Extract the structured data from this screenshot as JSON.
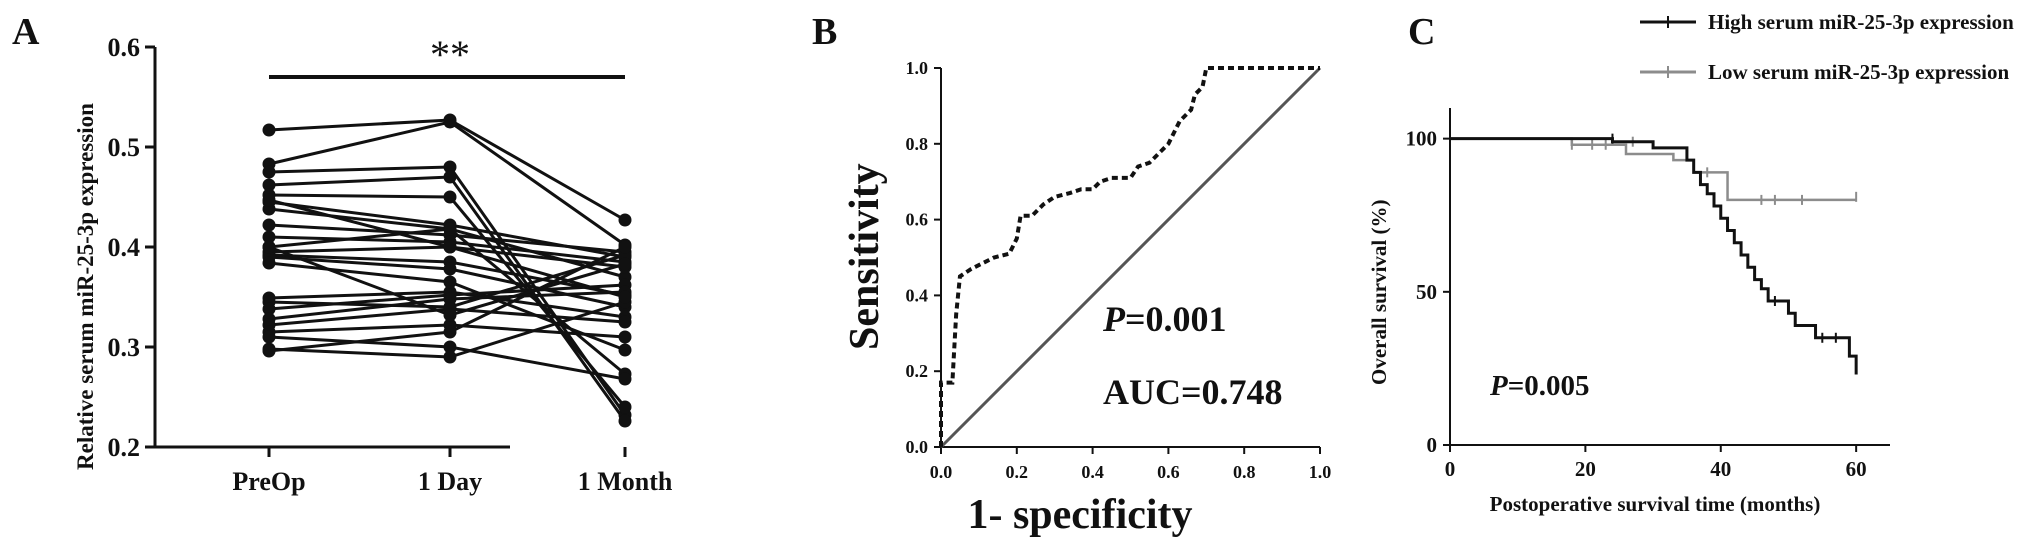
{
  "chart_data": [
    {
      "panel": "A",
      "type": "line",
      "ylabel": "Relative serum miR-25-3p expression",
      "categories": [
        "PreOp",
        "1 Day",
        "1 Month"
      ],
      "ylim": [
        0.2,
        0.6
      ],
      "yticks": [
        "0.2",
        "0.3",
        "0.4",
        "0.5",
        "0.6"
      ],
      "significance": "**",
      "series": [
        {
          "values": [
            0.517,
            0.527,
            0.427
          ]
        },
        {
          "values": [
            0.483,
            0.525,
            0.402
          ]
        },
        {
          "values": [
            0.475,
            0.48,
            0.232
          ]
        },
        {
          "values": [
            0.462,
            0.47,
            0.226
          ]
        },
        {
          "values": [
            0.452,
            0.45,
            0.24
          ]
        },
        {
          "values": [
            0.445,
            0.422,
            0.39
          ]
        },
        {
          "values": [
            0.438,
            0.418,
            0.273
          ]
        },
        {
          "values": [
            0.422,
            0.412,
            0.395
          ]
        },
        {
          "values": [
            0.41,
            0.405,
            0.385
          ]
        },
        {
          "values": [
            0.4,
            0.418,
            0.37
          ]
        },
        {
          "values": [
            0.395,
            0.4,
            0.38
          ]
        },
        {
          "values": [
            0.392,
            0.385,
            0.352
          ]
        },
        {
          "values": [
            0.39,
            0.378,
            0.34
          ]
        },
        {
          "values": [
            0.384,
            0.365,
            0.297
          ]
        },
        {
          "values": [
            0.349,
            0.355,
            0.33
          ]
        },
        {
          "values": [
            0.345,
            0.34,
            0.392
          ]
        },
        {
          "values": [
            0.338,
            0.352,
            0.362
          ]
        },
        {
          "values": [
            0.328,
            0.348,
            0.355
          ]
        },
        {
          "values": [
            0.322,
            0.338,
            0.325
          ]
        },
        {
          "values": [
            0.315,
            0.322,
            0.31
          ]
        },
        {
          "values": [
            0.31,
            0.3,
            0.268
          ]
        },
        {
          "values": [
            0.298,
            0.29,
            0.345
          ]
        },
        {
          "values": [
            0.296,
            0.315,
            0.4
          ]
        },
        {
          "values": [
            0.4,
            0.332,
            0.383
          ]
        },
        {
          "values": [
            0.447,
            0.4,
            0.35
          ]
        }
      ]
    },
    {
      "panel": "B",
      "type": "line",
      "xlabel": "1- specificity",
      "ylabel": "Sensitivity",
      "xlim": [
        0,
        1
      ],
      "ylim": [
        0,
        1
      ],
      "xticks": [
        "0.0",
        "0.2",
        "0.4",
        "0.6",
        "0.8",
        "1.0"
      ],
      "yticks": [
        "0.0",
        "0.2",
        "0.4",
        "0.6",
        "0.8",
        "1.0"
      ],
      "annotations": {
        "p_prefix": "P",
        "p_value": "=0.001",
        "auc": "AUC=0.748"
      },
      "roc": [
        [
          0,
          0
        ],
        [
          0,
          0.17
        ],
        [
          0.03,
          0.17
        ],
        [
          0.04,
          0.35
        ],
        [
          0.05,
          0.45
        ],
        [
          0.08,
          0.47
        ],
        [
          0.1,
          0.48
        ],
        [
          0.14,
          0.5
        ],
        [
          0.18,
          0.51
        ],
        [
          0.2,
          0.55
        ],
        [
          0.21,
          0.61
        ],
        [
          0.24,
          0.61
        ],
        [
          0.27,
          0.64
        ],
        [
          0.3,
          0.66
        ],
        [
          0.34,
          0.67
        ],
        [
          0.37,
          0.68
        ],
        [
          0.4,
          0.68
        ],
        [
          0.42,
          0.7
        ],
        [
          0.45,
          0.71
        ],
        [
          0.5,
          0.71
        ],
        [
          0.52,
          0.74
        ],
        [
          0.55,
          0.75
        ],
        [
          0.58,
          0.78
        ],
        [
          0.6,
          0.8
        ],
        [
          0.62,
          0.84
        ],
        [
          0.63,
          0.86
        ],
        [
          0.66,
          0.89
        ],
        [
          0.67,
          0.93
        ],
        [
          0.69,
          0.95
        ],
        [
          0.7,
          1.0
        ],
        [
          1.0,
          1.0
        ]
      ],
      "diagonal": [
        [
          0,
          0
        ],
        [
          1,
          1
        ]
      ]
    },
    {
      "panel": "C",
      "type": "line",
      "xlabel": "Postoperative survival time (months)",
      "ylabel": "Overall survival (%)",
      "xlim": [
        0,
        65
      ],
      "ylim": [
        0,
        110
      ],
      "xticks": [
        "0",
        "20",
        "40",
        "60"
      ],
      "yticks": [
        "0",
        "50",
        "100"
      ],
      "annotations": {
        "p_prefix": "P",
        "p_value": "=0.005"
      },
      "legend_position": "top-right",
      "colors": {
        "high": "#111111",
        "low": "#8c8c8c"
      },
      "series": [
        {
          "name": "High serum miR-25-3p expression",
          "steps": [
            [
              0,
              100
            ],
            [
              24,
              100
            ],
            [
              24,
              99
            ],
            [
              30,
              99
            ],
            [
              30,
              97
            ],
            [
              35,
              97
            ],
            [
              35,
              93
            ],
            [
              36,
              93
            ],
            [
              36,
              89
            ],
            [
              37,
              89
            ],
            [
              37,
              85
            ],
            [
              38,
              85
            ],
            [
              38,
              82
            ],
            [
              39,
              82
            ],
            [
              39,
              78
            ],
            [
              40,
              78
            ],
            [
              40,
              74
            ],
            [
              41,
              74
            ],
            [
              41,
              70
            ],
            [
              42,
              70
            ],
            [
              42,
              66
            ],
            [
              43,
              66
            ],
            [
              43,
              62
            ],
            [
              44,
              62
            ],
            [
              44,
              58
            ],
            [
              45,
              58
            ],
            [
              45,
              54
            ],
            [
              46,
              54
            ],
            [
              46,
              51
            ],
            [
              47,
              51
            ],
            [
              47,
              47
            ],
            [
              50,
              47
            ],
            [
              50,
              43
            ],
            [
              51,
              43
            ],
            [
              51,
              39
            ],
            [
              54,
              39
            ],
            [
              54,
              35
            ],
            [
              59,
              35
            ],
            [
              59,
              29
            ],
            [
              60,
              29
            ],
            [
              60,
              23
            ]
          ],
          "censor": [
            [
              24,
              100
            ],
            [
              48,
              47
            ],
            [
              55,
              35
            ],
            [
              57,
              35
            ]
          ]
        },
        {
          "name": "Low serum miR-25-3p expression",
          "steps": [
            [
              0,
              100
            ],
            [
              18,
              100
            ],
            [
              18,
              98
            ],
            [
              26,
              98
            ],
            [
              26,
              95
            ],
            [
              33,
              95
            ],
            [
              33,
              93
            ],
            [
              36,
              93
            ],
            [
              36,
              89
            ],
            [
              41,
              89
            ],
            [
              41,
              80
            ],
            [
              60,
              80
            ]
          ],
          "censor": [
            [
              18,
              98
            ],
            [
              21,
              98
            ],
            [
              23,
              98
            ],
            [
              27,
              99
            ],
            [
              38,
              89
            ],
            [
              46,
              80
            ],
            [
              48,
              80
            ],
            [
              52,
              80
            ],
            [
              60,
              81
            ]
          ]
        }
      ]
    }
  ]
}
